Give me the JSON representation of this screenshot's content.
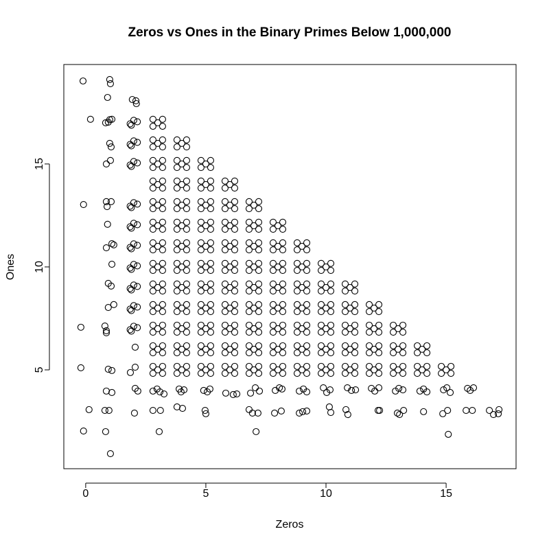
{
  "chart_data": {
    "type": "scatter",
    "title": "Zeros vs Ones in the Binary Primes Below 1,000,000",
    "x_label": "Zeros",
    "y_label": "Ones",
    "color": "#000000",
    "xlim": [
      -0.91,
      17.91
    ],
    "ylim": [
      0.2,
      19.83
    ],
    "xticks": [
      0,
      5,
      10,
      15
    ],
    "yticks": [
      5,
      10,
      15
    ],
    "x": [
      -0.11,
      0.2,
      -0.09,
      -0.2,
      -0.2,
      0.14,
      -0.09,
      1,
      1.03,
      0.91,
      0.83,
      1,
      1.09,
      0.94,
      1,
      1.06,
      1.03,
      0.86,
      0.86,
      1.06,
      0.89,
      0.91,
      0.86,
      1.09,
      1.17,
      1.09,
      0.94,
      1.06,
      0.94,
      1.17,
      0.8,
      0.86,
      0.86,
      0.94,
      1.09,
      0.86,
      1.09,
      0.8,
      0.97,
      0.83,
      1.03,
      1.94,
      2.09,
      2.11,
      2.06,
      1.86,
      2.06,
      2.06,
      2.17,
      2.03,
      1.85,
      2.15,
      2,
      1.9,
      1.85,
      2.15,
      2,
      1.9,
      1.85,
      2.15,
      2,
      1.9,
      1.85,
      2.15,
      2,
      1.9,
      1.85,
      2.15,
      2,
      1.9,
      1.85,
      2.15,
      2,
      1.9,
      1.85,
      2.15,
      2,
      1.9,
      1.85,
      2.15,
      2,
      1.9,
      1.85,
      2.15,
      2,
      1.9,
      1.85,
      2.15,
      2,
      1.9,
      2.8,
      2.97,
      3.09,
      3.26,
      2.8,
      3.11,
      3.06,
      3.89,
      3.97,
      4.09,
      3.8,
      4.03,
      4.91,
      5.06,
      5.17,
      4.97,
      5,
      5.83,
      6.14,
      6.29,
      6.86,
      7.06,
      7.23,
      6.8,
      6.94,
      7.17,
      7.09,
      7.89,
      8.06,
      8.17,
      7.86,
      8.14,
      8.89,
      9.06,
      9.2,
      8.89,
      9.03,
      9.2,
      9.89,
      10.03,
      10.17,
      10.14,
      10.2,
      10.89,
      11.06,
      11.23,
      10.83,
      10.91,
      11.89,
      12.03,
      12.2,
      12.17,
      12.23,
      12.89,
      13.03,
      13.2,
      12.97,
      13.06,
      13.23,
      13.91,
      14.06,
      14.2,
      14.06,
      14.89,
      15.03,
      15.17,
      14.86,
      15.06,
      15.09,
      15.89,
      16,
      16.14,
      15.83,
      16.09,
      16.8,
      16.97,
      17.2,
      17.17,
      2.8,
      3.2,
      3,
      2.8,
      3.2,
      2.8,
      3.2,
      3,
      2.8,
      3.2,
      2.8,
      3.2,
      3,
      2.8,
      3.2,
      2.8,
      3.2,
      3,
      2.8,
      3.2,
      2.8,
      3.2,
      3,
      2.8,
      3.2,
      2.8,
      3.2,
      3,
      2.8,
      3.2,
      2.8,
      3.2,
      3,
      2.8,
      3.2,
      2.8,
      3.2,
      3,
      2.8,
      3.2,
      2.8,
      3.2,
      3,
      2.8,
      3.2,
      2.8,
      3.2,
      3,
      2.8,
      3.2,
      2.8,
      3.2,
      3,
      2.8,
      3.2,
      2.8,
      3.2,
      3,
      2.8,
      3.2,
      2.8,
      3.2,
      3,
      2.8,
      3.2,
      3.8,
      4.2,
      4,
      3.8,
      4.2,
      3.8,
      4.2,
      4,
      3.8,
      4.2,
      3.8,
      4.2,
      4,
      3.8,
      4.2,
      3.8,
      4.2,
      4,
      3.8,
      4.2,
      3.8,
      4.2,
      4,
      3.8,
      4.2,
      3.8,
      4.2,
      4,
      3.8,
      4.2,
      3.8,
      4.2,
      4,
      3.8,
      4.2,
      3.8,
      4.2,
      4,
      3.8,
      4.2,
      3.8,
      4.2,
      4,
      3.8,
      4.2,
      3.8,
      4.2,
      4,
      3.8,
      4.2,
      3.8,
      4.2,
      4,
      3.8,
      4.2,
      3.8,
      4.2,
      4,
      3.8,
      4.2,
      4.8,
      5.2,
      5,
      4.8,
      5.2,
      4.8,
      5.2,
      5,
      4.8,
      5.2,
      4.8,
      5.2,
      5,
      4.8,
      5.2,
      4.8,
      5.2,
      5,
      4.8,
      5.2,
      4.8,
      5.2,
      5,
      4.8,
      5.2,
      4.8,
      5.2,
      5,
      4.8,
      5.2,
      4.8,
      5.2,
      5,
      4.8,
      5.2,
      4.8,
      5.2,
      5,
      4.8,
      5.2,
      4.8,
      5.2,
      5,
      4.8,
      5.2,
      4.8,
      5.2,
      5,
      4.8,
      5.2,
      4.8,
      5.2,
      5,
      4.8,
      5.2,
      5.8,
      6.2,
      6,
      5.8,
      6.2,
      5.8,
      6.2,
      6,
      5.8,
      6.2,
      5.8,
      6.2,
      6,
      5.8,
      6.2,
      5.8,
      6.2,
      6,
      5.8,
      6.2,
      5.8,
      6.2,
      6,
      5.8,
      6.2,
      5.8,
      6.2,
      6,
      5.8,
      6.2,
      5.8,
      6.2,
      6,
      5.8,
      6.2,
      5.8,
      6.2,
      6,
      5.8,
      6.2,
      5.8,
      6.2,
      6,
      5.8,
      6.2,
      5.8,
      6.2,
      6,
      5.8,
      6.2,
      6.8,
      7.2,
      7,
      6.8,
      7.2,
      6.8,
      7.2,
      7,
      6.8,
      7.2,
      6.8,
      7.2,
      7,
      6.8,
      7.2,
      6.8,
      7.2,
      7,
      6.8,
      7.2,
      6.8,
      7.2,
      7,
      6.8,
      7.2,
      6.8,
      7.2,
      7,
      6.8,
      7.2,
      6.8,
      7.2,
      7,
      6.8,
      7.2,
      6.8,
      7.2,
      7,
      6.8,
      7.2,
      6.8,
      7.2,
      7,
      6.8,
      7.2,
      7.8,
      8.2,
      8,
      7.8,
      8.2,
      7.8,
      8.2,
      8,
      7.8,
      8.2,
      7.8,
      8.2,
      8,
      7.8,
      8.2,
      7.8,
      8.2,
      8,
      7.8,
      8.2,
      7.8,
      8.2,
      8,
      7.8,
      8.2,
      7.8,
      8.2,
      8,
      7.8,
      8.2,
      7.8,
      8.2,
      8,
      7.8,
      8.2,
      7.8,
      8.2,
      8,
      7.8,
      8.2,
      8.8,
      9.2,
      9,
      8.8,
      9.2,
      8.8,
      9.2,
      9,
      8.8,
      9.2,
      8.8,
      9.2,
      9,
      8.8,
      9.2,
      8.8,
      9.2,
      9,
      8.8,
      9.2,
      8.8,
      9.2,
      9,
      8.8,
      9.2,
      8.8,
      9.2,
      9,
      8.8,
      9.2,
      8.8,
      9.2,
      9,
      8.8,
      9.2,
      9.8,
      10.2,
      10,
      9.8,
      10.2,
      9.8,
      10.2,
      10,
      9.8,
      10.2,
      9.8,
      10.2,
      10,
      9.8,
      10.2,
      9.8,
      10.2,
      10,
      9.8,
      10.2,
      9.8,
      10.2,
      10,
      9.8,
      10.2,
      9.8,
      10.2,
      10,
      9.8,
      10.2,
      10.8,
      11.2,
      11,
      10.8,
      11.2,
      10.8,
      11.2,
      11,
      10.8,
      11.2,
      10.8,
      11.2,
      11,
      10.8,
      11.2,
      10.8,
      11.2,
      11,
      10.8,
      11.2,
      10.8,
      11.2,
      11,
      10.8,
      11.2,
      11.8,
      12.2,
      12,
      11.8,
      12.2,
      11.8,
      12.2,
      12,
      11.8,
      12.2,
      11.8,
      12.2,
      12,
      11.8,
      12.2,
      11.8,
      12.2,
      12,
      11.8,
      12.2,
      12.8,
      13.2,
      13,
      12.8,
      13.2,
      12.8,
      13.2,
      13,
      12.8,
      13.2,
      12.8,
      13.2,
      13,
      12.8,
      13.2,
      13.8,
      14.2,
      14,
      13.8,
      14.2,
      13.8,
      14.2,
      14,
      13.8,
      14.2,
      14.8,
      15.2,
      15,
      14.8,
      15.2
    ],
    "values": [
      19.03,
      17.17,
      13.03,
      7.07,
      5.1,
      3.07,
      2.03,
      19.1,
      18.9,
      18.23,
      17,
      17.15,
      17.17,
      17.03,
      16,
      15.83,
      15.17,
      15,
      13.17,
      13.17,
      12.93,
      12.07,
      10.93,
      11.13,
      11.07,
      10.13,
      9.2,
      9.07,
      8.03,
      8.17,
      7.13,
      6.9,
      6.8,
      5.03,
      4.97,
      3.97,
      3.9,
      3.03,
      3.03,
      2,
      0.93,
      18.13,
      18.07,
      17.93,
      6.1,
      4.87,
      5.13,
      4.1,
      3.97,
      2.9,
      16.95,
      17.05,
      17.12,
      16.88,
      15.95,
      16.05,
      16.12,
      15.88,
      14.95,
      15.05,
      15.12,
      14.88,
      12.95,
      13.05,
      13.12,
      12.88,
      11.95,
      12.05,
      12.12,
      11.88,
      10.95,
      11.05,
      11.12,
      10.88,
      9.95,
      10.05,
      10.12,
      9.88,
      8.95,
      9.05,
      9.12,
      8.88,
      7.95,
      8.05,
      8.12,
      7.88,
      6.95,
      7.05,
      7.12,
      6.88,
      3.97,
      4.07,
      3.93,
      3.83,
      3.03,
      3.03,
      2,
      4.07,
      3.93,
      4.03,
      3.2,
      3.13,
      4,
      3.93,
      4.07,
      3.03,
      2.87,
      3.87,
      3.8,
      3.83,
      3.87,
      4.13,
      3.97,
      3.07,
      2.9,
      2.9,
      2,
      4,
      4.13,
      4.07,
      2.9,
      3,
      3.97,
      4.07,
      3.93,
      2.9,
      2.97,
      3,
      4.13,
      3.9,
      4.03,
      3.2,
      2.93,
      4.13,
      4,
      4.03,
      3.07,
      2.83,
      4.1,
      3.97,
      4.13,
      3.03,
      3.03,
      3.97,
      4.1,
      4.03,
      2.9,
      2.83,
      3.03,
      3.97,
      4.07,
      3.93,
      2.97,
      4.03,
      4.13,
      3.9,
      2.87,
      3.03,
      1.87,
      4.1,
      4,
      4.13,
      3.03,
      3.03,
      3.03,
      2.83,
      3.07,
      2.87,
      4.83,
      4.83,
      5,
      5.17,
      5.17,
      5.83,
      5.83,
      6,
      6.17,
      6.17,
      6.83,
      6.83,
      7,
      7.17,
      7.17,
      7.83,
      7.83,
      8,
      8.17,
      8.17,
      8.83,
      8.83,
      9,
      9.17,
      9.17,
      9.83,
      9.83,
      10,
      10.17,
      10.17,
      10.83,
      10.83,
      11,
      11.17,
      11.17,
      11.83,
      11.83,
      12,
      12.17,
      12.17,
      12.83,
      12.83,
      13,
      13.17,
      13.17,
      13.83,
      13.83,
      14,
      14.17,
      14.17,
      14.83,
      14.83,
      15,
      15.17,
      15.17,
      15.83,
      15.83,
      16,
      16.17,
      16.17,
      16.83,
      16.83,
      17,
      17.17,
      17.17,
      4.83,
      4.83,
      5,
      5.17,
      5.17,
      5.83,
      5.83,
      6,
      6.17,
      6.17,
      6.83,
      6.83,
      7,
      7.17,
      7.17,
      7.83,
      7.83,
      8,
      8.17,
      8.17,
      8.83,
      8.83,
      9,
      9.17,
      9.17,
      9.83,
      9.83,
      10,
      10.17,
      10.17,
      10.83,
      10.83,
      11,
      11.17,
      11.17,
      11.83,
      11.83,
      12,
      12.17,
      12.17,
      12.83,
      12.83,
      13,
      13.17,
      13.17,
      13.83,
      13.83,
      14,
      14.17,
      14.17,
      14.83,
      14.83,
      15,
      15.17,
      15.17,
      15.83,
      15.83,
      16,
      16.17,
      16.17,
      4.83,
      4.83,
      5,
      5.17,
      5.17,
      5.83,
      5.83,
      6,
      6.17,
      6.17,
      6.83,
      6.83,
      7,
      7.17,
      7.17,
      7.83,
      7.83,
      8,
      8.17,
      8.17,
      8.83,
      8.83,
      9,
      9.17,
      9.17,
      9.83,
      9.83,
      10,
      10.17,
      10.17,
      10.83,
      10.83,
      11,
      11.17,
      11.17,
      11.83,
      11.83,
      12,
      12.17,
      12.17,
      12.83,
      12.83,
      13,
      13.17,
      13.17,
      13.83,
      13.83,
      14,
      14.17,
      14.17,
      14.83,
      14.83,
      15,
      15.17,
      15.17,
      4.83,
      4.83,
      5,
      5.17,
      5.17,
      5.83,
      5.83,
      6,
      6.17,
      6.17,
      6.83,
      6.83,
      7,
      7.17,
      7.17,
      7.83,
      7.83,
      8,
      8.17,
      8.17,
      8.83,
      8.83,
      9,
      9.17,
      9.17,
      9.83,
      9.83,
      10,
      10.17,
      10.17,
      10.83,
      10.83,
      11,
      11.17,
      11.17,
      11.83,
      11.83,
      12,
      12.17,
      12.17,
      12.83,
      12.83,
      13,
      13.17,
      13.17,
      13.83,
      13.83,
      14,
      14.17,
      14.17,
      4.83,
      4.83,
      5,
      5.17,
      5.17,
      5.83,
      5.83,
      6,
      6.17,
      6.17,
      6.83,
      6.83,
      7,
      7.17,
      7.17,
      7.83,
      7.83,
      8,
      8.17,
      8.17,
      8.83,
      8.83,
      9,
      9.17,
      9.17,
      9.83,
      9.83,
      10,
      10.17,
      10.17,
      10.83,
      10.83,
      11,
      11.17,
      11.17,
      11.83,
      11.83,
      12,
      12.17,
      12.17,
      12.83,
      12.83,
      13,
      13.17,
      13.17,
      4.83,
      4.83,
      5,
      5.17,
      5.17,
      5.83,
      5.83,
      6,
      6.17,
      6.17,
      6.83,
      6.83,
      7,
      7.17,
      7.17,
      7.83,
      7.83,
      8,
      8.17,
      8.17,
      8.83,
      8.83,
      9,
      9.17,
      9.17,
      9.83,
      9.83,
      10,
      10.17,
      10.17,
      10.83,
      10.83,
      11,
      11.17,
      11.17,
      11.83,
      11.83,
      12,
      12.17,
      12.17,
      4.83,
      4.83,
      5,
      5.17,
      5.17,
      5.83,
      5.83,
      6,
      6.17,
      6.17,
      6.83,
      6.83,
      7,
      7.17,
      7.17,
      7.83,
      7.83,
      8,
      8.17,
      8.17,
      8.83,
      8.83,
      9,
      9.17,
      9.17,
      9.83,
      9.83,
      10,
      10.17,
      10.17,
      10.83,
      10.83,
      11,
      11.17,
      11.17,
      4.83,
      4.83,
      5,
      5.17,
      5.17,
      5.83,
      5.83,
      6,
      6.17,
      6.17,
      6.83,
      6.83,
      7,
      7.17,
      7.17,
      7.83,
      7.83,
      8,
      8.17,
      8.17,
      8.83,
      8.83,
      9,
      9.17,
      9.17,
      9.83,
      9.83,
      10,
      10.17,
      10.17,
      4.83,
      4.83,
      5,
      5.17,
      5.17,
      5.83,
      5.83,
      6,
      6.17,
      6.17,
      6.83,
      6.83,
      7,
      7.17,
      7.17,
      7.83,
      7.83,
      8,
      8.17,
      8.17,
      8.83,
      8.83,
      9,
      9.17,
      9.17,
      4.83,
      4.83,
      5,
      5.17,
      5.17,
      5.83,
      5.83,
      6,
      6.17,
      6.17,
      6.83,
      6.83,
      7,
      7.17,
      7.17,
      7.83,
      7.83,
      8,
      8.17,
      8.17,
      4.83,
      4.83,
      5,
      5.17,
      5.17,
      5.83,
      5.83,
      6,
      6.17,
      6.17,
      6.83,
      6.83,
      7,
      7.17,
      7.17,
      4.83,
      4.83,
      5,
      5.17,
      5.17,
      5.83,
      5.83,
      6,
      6.17,
      6.17,
      4.83,
      4.83,
      5,
      5.17,
      5.17
    ]
  }
}
